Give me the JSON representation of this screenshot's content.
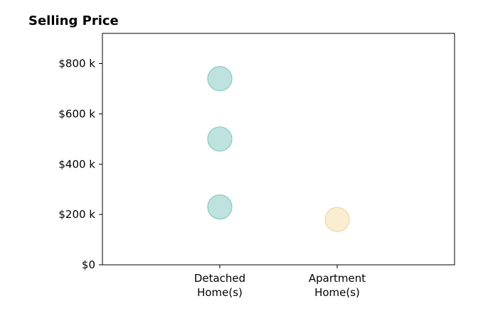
{
  "chart_data": {
    "type": "scatter",
    "title": "Selling Price",
    "xlabel": "",
    "ylabel": "",
    "categories": [
      [
        "Detached",
        "Home(s)"
      ],
      [
        "Apartment",
        "Home(s)"
      ]
    ],
    "x_range": [
      -1,
      2
    ],
    "ylim": [
      0,
      920000
    ],
    "y_ticks": [
      {
        "value": 0,
        "label": "$0"
      },
      {
        "value": 200000,
        "label": "$200 k"
      },
      {
        "value": 400000,
        "label": "$400 k"
      },
      {
        "value": 600000,
        "label": "$600 k"
      },
      {
        "value": 800000,
        "label": "$800 k"
      }
    ],
    "grid": false,
    "legend": "none",
    "series": [
      {
        "color": "#9fd5cf",
        "edge_color": "#88c8c2",
        "points": [
          {
            "category": 0,
            "y": 740000
          },
          {
            "category": 0,
            "y": 500000
          },
          {
            "category": 0,
            "y": 230000
          }
        ]
      },
      {
        "color": "#f8e4bb",
        "edge_color": "#efd7a8",
        "points": [
          {
            "category": 1,
            "y": 180000
          }
        ]
      }
    ]
  }
}
